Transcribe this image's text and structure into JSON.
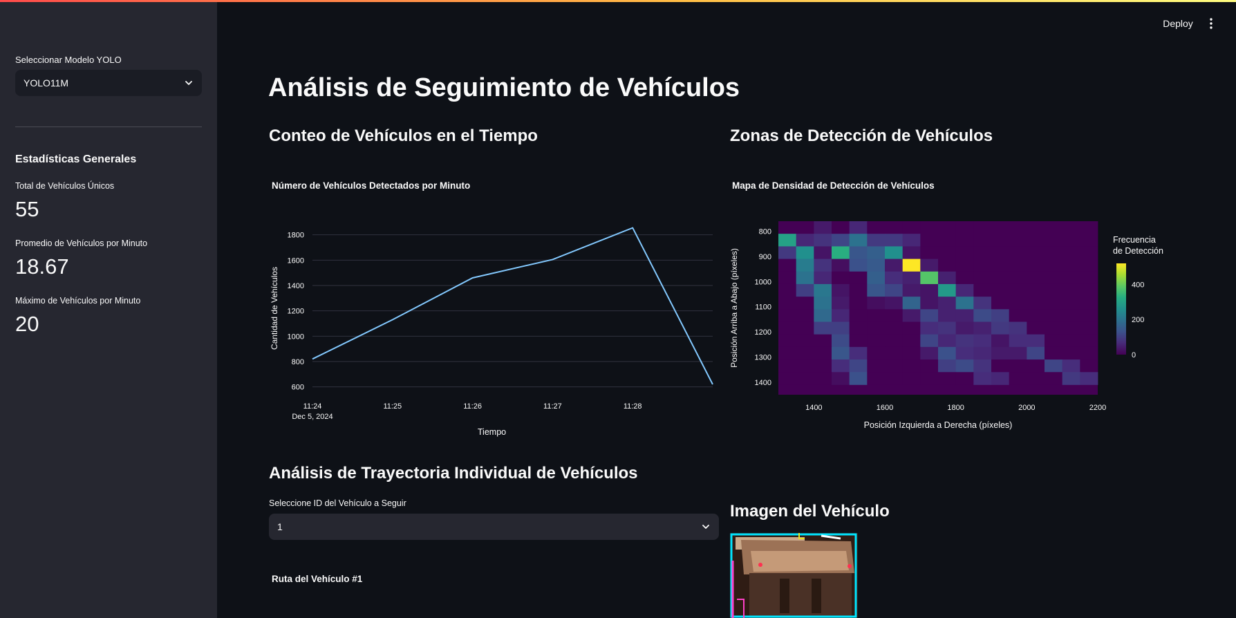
{
  "sidebar": {
    "model_label": "Seleccionar Modelo YOLO",
    "model_value": "YOLO11M",
    "stats_heading": "Estadísticas Generales",
    "metrics": [
      {
        "label": "Total de Vehículos Únicos",
        "value": "55"
      },
      {
        "label": "Promedio de Vehículos por Minuto",
        "value": "18.67"
      },
      {
        "label": "Máximo de Vehículos por Minuto",
        "value": "20"
      }
    ]
  },
  "header": {
    "deploy_label": "Deploy",
    "menu_icon": "vertical-ellipsis-icon"
  },
  "main": {
    "title": "Análisis de Seguimiento de Vehículos",
    "count_section": "Conteo de Vehículos en el Tiempo",
    "zones_section": "Zonas de Detección de Vehículos",
    "trajectory_section": "Análisis de Trayectoria Individual de Vehículos",
    "select_label": "Seleccione ID del Vehículo a Seguir",
    "select_value": "1",
    "route_title": "Ruta del Vehículo #1",
    "image_section": "Imagen del Vehículo"
  },
  "chart_data": [
    {
      "type": "line",
      "title": "Número de Vehículos Detectados por Minuto",
      "xlabel": "Tiempo",
      "ylabel": "Cantidad de Vehículos",
      "x_ticks": [
        "11:24",
        "11:25",
        "11:26",
        "11:27",
        "11:28"
      ],
      "x_tick_sublabel": "Dec 5, 2024",
      "x": [
        0,
        1,
        2,
        3,
        4,
        5
      ],
      "values": [
        820,
        1130,
        1460,
        1605,
        1855,
        620
      ],
      "y_ticks": [
        600,
        800,
        1000,
        1200,
        1400,
        1600,
        1800
      ],
      "ylim": [
        560,
        1880
      ],
      "line_color": "#83c9ff",
      "grid": true
    },
    {
      "type": "heatmap",
      "title": "Mapa de Densidad de Detección de Vehículos",
      "xlabel": "Posición Izquierda a Derecha (píxeles)",
      "ylabel": "Posición Arriba a Abajo (píxeles)",
      "colorbar_title": [
        "Frecuencia",
        "de Detección"
      ],
      "colorbar_ticks": [
        0,
        200,
        400
      ],
      "colorscale": "viridis",
      "zmax": 520,
      "x_ticks": [
        1400,
        1600,
        1800,
        2000,
        2200
      ],
      "y_ticks": [
        800,
        900,
        1000,
        1100,
        1200,
        1300,
        1400
      ],
      "x_range": [
        1300,
        2200
      ],
      "y_range": [
        1450,
        760
      ],
      "x_start": 1300,
      "x_step": 50,
      "y_start": 760,
      "y_step": 50,
      "z": [
        [
          0,
          0,
          40,
          0,
          60,
          0,
          0,
          0,
          0,
          0,
          0,
          0,
          0,
          0,
          0,
          0,
          0,
          0
        ],
        [
          300,
          60,
          80,
          110,
          200,
          90,
          90,
          60,
          0,
          0,
          0,
          0,
          0,
          0,
          0,
          0,
          0,
          0
        ],
        [
          90,
          260,
          30,
          330,
          140,
          160,
          260,
          30,
          0,
          0,
          0,
          0,
          0,
          0,
          0,
          0,
          0,
          0
        ],
        [
          0,
          220,
          80,
          20,
          130,
          150,
          40,
          520,
          40,
          0,
          0,
          0,
          0,
          0,
          0,
          0,
          0,
          0
        ],
        [
          0,
          200,
          60,
          0,
          0,
          160,
          70,
          50,
          380,
          50,
          0,
          0,
          0,
          0,
          0,
          0,
          0,
          0
        ],
        [
          0,
          100,
          210,
          30,
          0,
          140,
          110,
          40,
          30,
          280,
          60,
          0,
          0,
          0,
          0,
          0,
          0,
          0
        ],
        [
          0,
          0,
          200,
          40,
          0,
          20,
          30,
          170,
          30,
          50,
          200,
          80,
          0,
          0,
          0,
          0,
          0,
          0
        ],
        [
          0,
          0,
          180,
          60,
          0,
          0,
          0,
          40,
          110,
          50,
          50,
          120,
          100,
          0,
          0,
          0,
          0,
          0
        ],
        [
          0,
          0,
          100,
          100,
          0,
          0,
          0,
          0,
          70,
          80,
          40,
          50,
          90,
          80,
          0,
          0,
          0,
          0
        ],
        [
          0,
          0,
          0,
          120,
          0,
          0,
          0,
          0,
          110,
          60,
          80,
          70,
          30,
          70,
          70,
          0,
          0,
          0
        ],
        [
          0,
          0,
          0,
          140,
          70,
          0,
          0,
          0,
          40,
          130,
          70,
          60,
          40,
          40,
          110,
          0,
          0,
          0
        ],
        [
          0,
          0,
          0,
          70,
          110,
          0,
          0,
          0,
          0,
          100,
          120,
          80,
          0,
          0,
          0,
          110,
          70,
          0
        ],
        [
          0,
          0,
          0,
          20,
          130,
          0,
          0,
          0,
          0,
          0,
          0,
          70,
          60,
          0,
          0,
          0,
          90,
          70
        ]
      ]
    }
  ]
}
